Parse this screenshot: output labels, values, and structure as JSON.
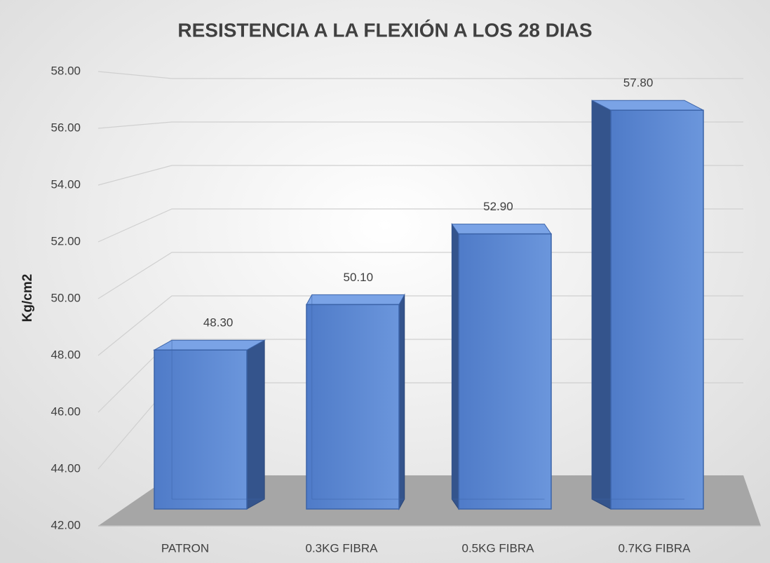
{
  "chart_data": {
    "type": "bar3d",
    "title": "RESISTENCIA A LA FLEXIÓN A LOS 28 DIAS",
    "y_axis_label": "Kg/cm2",
    "categories": [
      "PATRON",
      "0.3KG FIBRA",
      "0.5KG FIBRA",
      "0.7KG FIBRA"
    ],
    "values": [
      48.3,
      50.1,
      52.9,
      57.8
    ],
    "value_labels": [
      "48.30",
      "50.10",
      "52.90",
      "57.80"
    ],
    "color": "#5b87d4",
    "ylim": [
      42,
      58
    ],
    "yticks": [
      {
        "value": 42,
        "label": "42.00"
      },
      {
        "value": 44,
        "label": "44.00"
      },
      {
        "value": 46,
        "label": "46.00"
      },
      {
        "value": 48,
        "label": "48.00"
      },
      {
        "value": 50,
        "label": "50.00"
      },
      {
        "value": 52,
        "label": "52.00"
      },
      {
        "value": 54,
        "label": "54.00"
      },
      {
        "value": 56,
        "label": "56.00"
      },
      {
        "value": 58,
        "label": "58.00"
      }
    ],
    "grid": true
  }
}
